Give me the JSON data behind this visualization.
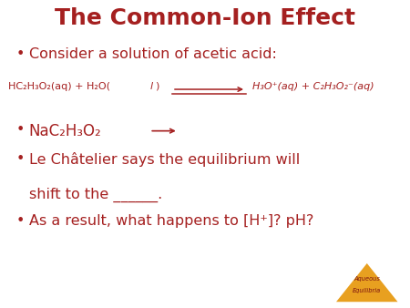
{
  "title": "The Common-Ion Effect",
  "title_color": "#A52020",
  "bg_color": "#FFFFFF",
  "text_color": "#A52020",
  "bullet1": "Consider a solution of acetic acid:",
  "bullet2_main": "NaC₂H₃O₂",
  "bullet3_line1": "Le Châtelier says the equilibrium will",
  "bullet3_line2": "shift to the ______.",
  "bullet4": "As a result, what happens to [H⁺]? pH?",
  "watermark_text1": "Aqueous",
  "watermark_text2": "Equilibria",
  "triangle_color": "#E8A020",
  "rxn_left_normal": "HC₂H₃O₂(aq) + H₂O(",
  "rxn_left_italic": "l",
  "rxn_left_close": ")",
  "rxn_right": "H₃O⁺(aq) + C₂H₃O₂⁻(aq)",
  "title_fontsize": 18,
  "bullet_fontsize": 11.5,
  "rxn_fontsize": 8.0,
  "bullet2_fontsize": 12,
  "wm_fontsize": 4.8
}
